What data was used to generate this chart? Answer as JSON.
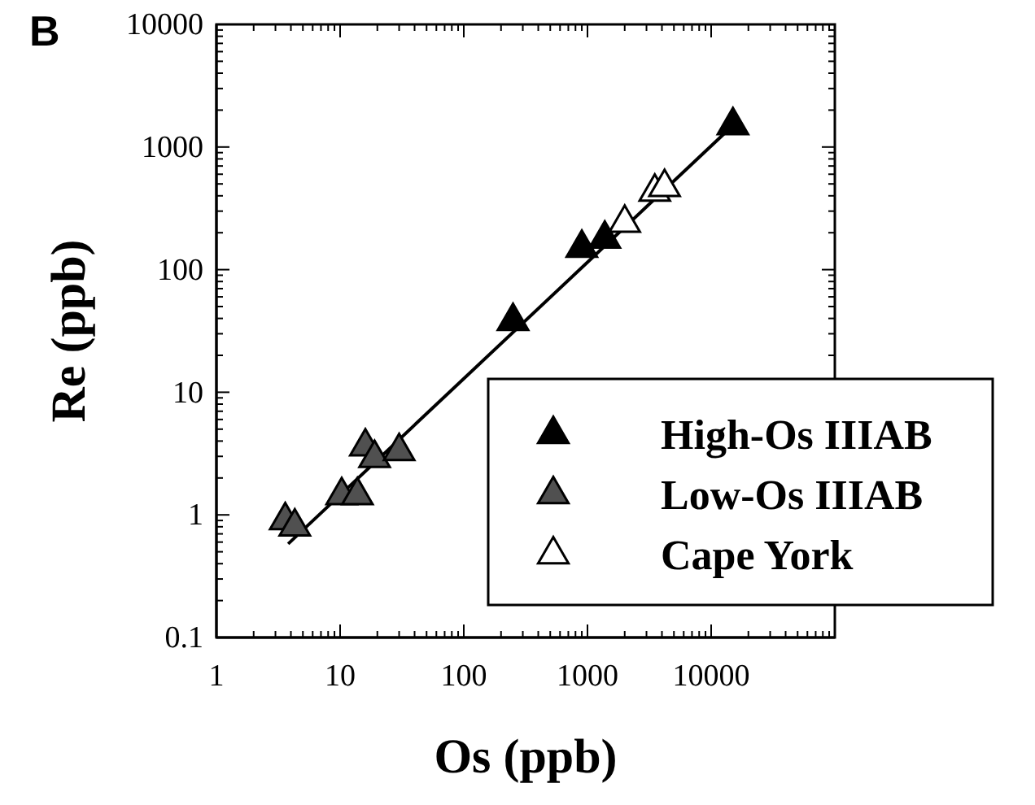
{
  "chart_data": {
    "type": "scatter",
    "title": "B",
    "xlabel": "Os (ppb)",
    "ylabel": "Re (ppb)",
    "log": "xy",
    "xlim": [
      1,
      100000
    ],
    "xticks": [
      1,
      10,
      100,
      1000,
      10000,
      {
        "value": 100000,
        "label": null
      }
    ],
    "ylim": [
      0.1,
      10000
    ],
    "yticks": [
      0.1,
      1,
      10,
      100,
      1000,
      10000
    ],
    "grid": false,
    "legend": "bottom right",
    "series": [
      {
        "name": "High-Os IIIAB",
        "color": "#000000",
        "marker": "triangle",
        "x": [
          250,
          900,
          1380,
          15000
        ],
        "values": [
          38,
          150,
          178,
          1500
        ]
      },
      {
        "name": "Low-Os IIIAB",
        "color": "#505050",
        "marker": "triangle",
        "x": [
          3.6,
          4.3,
          10.3,
          13.8,
          16,
          19,
          30
        ],
        "values": [
          0.9,
          0.8,
          1.44,
          1.44,
          3.6,
          2.9,
          3.3
        ]
      },
      {
        "name": "Cape York",
        "color": "#ffffff",
        "marker": "triangle",
        "x": [
          2000,
          3500,
          4200
        ],
        "values": [
          240,
          430,
          470
        ]
      },
      {
        "type": "line",
        "color": "#000000",
        "line_style": "solid",
        "marker": "none",
        "x": [
          3.8,
          15000
        ],
        "values": [
          0.58,
          1500
        ]
      }
    ]
  }
}
